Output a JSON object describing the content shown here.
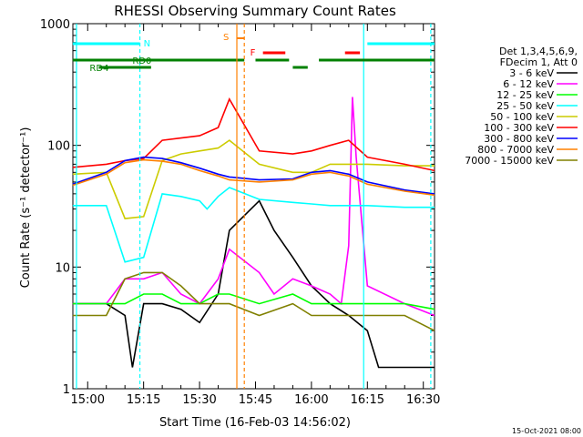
{
  "chart_data": {
    "type": "line",
    "title": "RHESSI Observing Summary Count Rates",
    "xlabel": "Start Time (16-Feb-03 14:56:02)",
    "ylabel": "Count Rate (s⁻¹ detector⁻¹)",
    "yscale": "log",
    "ylim": [
      1,
      1000
    ],
    "xlim": [
      "14:56:02",
      "16:33:00"
    ],
    "x_ticks": [
      "15:00",
      "15:15",
      "15:30",
      "15:45",
      "16:00",
      "16:15",
      "16:30"
    ],
    "y_ticks": [
      "1",
      "10",
      "100",
      "1000"
    ],
    "grid": false,
    "legend_position": "right",
    "legend_header": [
      "Det 1,3,4,5,6,9,",
      "FDecim 1, Att 0"
    ],
    "footer_date": "15-Oct-2021 08:00",
    "flags": {
      "N": "N",
      "S": "S",
      "F": "F",
      "RD0": "RD0",
      "RD4": "RD4"
    },
    "series": [
      {
        "name": "3 - 6 keV",
        "color": "#000000",
        "x": [
          "14:56",
          "15:05",
          "15:10",
          "15:12",
          "15:15",
          "15:20",
          "15:25",
          "15:30",
          "15:35",
          "15:38",
          "15:46",
          "15:50",
          "15:55",
          "16:00",
          "16:05",
          "16:10",
          "16:15",
          "16:18",
          "16:25",
          "16:33"
        ],
        "y": [
          5,
          5,
          4,
          1.5,
          5,
          5,
          4.5,
          3.5,
          6,
          20,
          35,
          20,
          12,
          7,
          5,
          4,
          3,
          1.5,
          1.5,
          1.5
        ]
      },
      {
        "name": "6 - 12 keV",
        "color": "#ff00ff",
        "x": [
          "14:56",
          "15:05",
          "15:10",
          "15:15",
          "15:20",
          "15:25",
          "15:30",
          "15:35",
          "15:38",
          "15:46",
          "15:50",
          "15:55",
          "16:00",
          "16:05",
          "16:08",
          "16:10",
          "16:11",
          "16:12",
          "16:15",
          "16:25",
          "16:33"
        ],
        "y": [
          5,
          5,
          8,
          8,
          9,
          6,
          5,
          8,
          14,
          9,
          6,
          8,
          7,
          6,
          5,
          15,
          250,
          80,
          7,
          5,
          4
        ]
      },
      {
        "name": "12 - 25 keV",
        "color": "#00ff00",
        "x": [
          "14:56",
          "15:05",
          "15:10",
          "15:15",
          "15:20",
          "15:25",
          "15:30",
          "15:35",
          "15:38",
          "15:46",
          "15:55",
          "16:00",
          "16:05",
          "16:10",
          "16:15",
          "16:25",
          "16:33"
        ],
        "y": [
          5,
          5,
          5,
          6,
          6,
          5,
          5,
          6,
          6,
          5,
          6,
          5,
          5,
          5,
          5,
          5,
          4.5
        ]
      },
      {
        "name": "25 - 50 keV",
        "color": "#00ffff",
        "x": [
          "14:56",
          "15:05",
          "15:10",
          "15:15",
          "15:20",
          "15:25",
          "15:30",
          "15:32",
          "15:35",
          "15:38",
          "15:46",
          "15:55",
          "16:00",
          "16:05",
          "16:10",
          "16:15",
          "16:25",
          "16:33"
        ],
        "y": [
          32,
          32,
          11,
          12,
          40,
          38,
          35,
          30,
          38,
          45,
          36,
          34,
          33,
          32,
          32,
          32,
          31,
          31
        ]
      },
      {
        "name": "50 - 100 keV",
        "color": "#cccc00",
        "x": [
          "14:56",
          "15:05",
          "15:10",
          "15:15",
          "15:20",
          "15:25",
          "15:30",
          "15:35",
          "15:38",
          "15:46",
          "15:55",
          "16:00",
          "16:05",
          "16:10",
          "16:15",
          "16:25",
          "16:33"
        ],
        "y": [
          58,
          60,
          25,
          26,
          75,
          85,
          90,
          95,
          110,
          70,
          60,
          60,
          70,
          70,
          70,
          68,
          68
        ]
      },
      {
        "name": "100 - 300 keV",
        "color": "#ff0000",
        "x": [
          "14:56",
          "15:05",
          "15:10",
          "15:15",
          "15:20",
          "15:25",
          "15:30",
          "15:35",
          "15:38",
          "15:46",
          "15:55",
          "16:00",
          "16:05",
          "16:10",
          "16:15",
          "16:25",
          "16:33"
        ],
        "y": [
          66,
          70,
          75,
          78,
          110,
          115,
          120,
          140,
          240,
          90,
          85,
          90,
          100,
          110,
          80,
          70,
          62
        ]
      },
      {
        "name": "300 - 800 keV",
        "color": "#0000ff",
        "x": [
          "14:56",
          "15:05",
          "15:10",
          "15:15",
          "15:20",
          "15:25",
          "15:30",
          "15:35",
          "15:38",
          "15:46",
          "15:55",
          "16:00",
          "16:05",
          "16:10",
          "16:15",
          "16:25",
          "16:33"
        ],
        "y": [
          48,
          60,
          75,
          80,
          78,
          72,
          65,
          58,
          55,
          52,
          53,
          60,
          62,
          58,
          50,
          43,
          40
        ]
      },
      {
        "name": "800 - 7000 keV",
        "color": "#ff8000",
        "x": [
          "14:56",
          "15:05",
          "15:10",
          "15:15",
          "15:20",
          "15:25",
          "15:30",
          "15:35",
          "15:38",
          "15:46",
          "15:55",
          "16:00",
          "16:05",
          "16:10",
          "16:15",
          "16:25",
          "16:33"
        ],
        "y": [
          47,
          58,
          72,
          76,
          74,
          70,
          62,
          56,
          52,
          50,
          52,
          58,
          60,
          56,
          48,
          42,
          39
        ]
      },
      {
        "name": "7000 - 15000 keV",
        "color": "#808000",
        "x": [
          "14:56",
          "15:05",
          "15:10",
          "15:15",
          "15:20",
          "15:25",
          "15:30",
          "15:35",
          "15:38",
          "15:46",
          "15:55",
          "16:00",
          "16:05",
          "16:10",
          "16:15",
          "16:25",
          "16:33"
        ],
        "y": [
          4,
          4,
          8,
          9,
          9,
          7,
          5,
          5,
          5,
          4,
          5,
          4,
          4,
          4,
          4,
          4,
          3
        ]
      }
    ]
  }
}
